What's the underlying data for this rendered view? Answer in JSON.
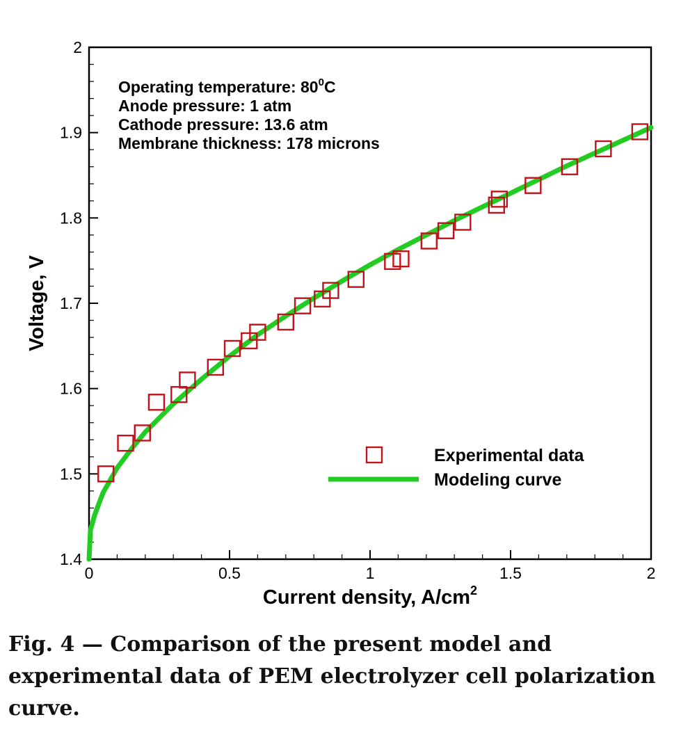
{
  "chart_data": {
    "type": "scatter",
    "xlabel": "Current density, A/cm",
    "xlabel_sup": "2",
    "ylabel": "Voltage, V",
    "xlim": [
      0,
      2
    ],
    "ylim": [
      1.4,
      2
    ],
    "x_ticks": [
      0,
      0.5,
      1,
      1.5,
      2
    ],
    "x_tick_labels": [
      "0",
      "0.5",
      "1",
      "1.5",
      "2"
    ],
    "y_ticks": [
      1.4,
      1.5,
      1.6,
      1.7,
      1.8,
      1.9,
      2
    ],
    "y_tick_labels": [
      "1.4",
      "1.5",
      "1.6",
      "1.7",
      "1.8",
      "1.9",
      "2"
    ],
    "grid": false,
    "legend_position": "lower-right",
    "annotations": [
      {
        "text": "Operating temperature: 80",
        "sup": "0",
        "suffix": "C"
      },
      {
        "text": "Anode pressure: 1 atm"
      },
      {
        "text": "Cathode pressure: 13.6 atm"
      },
      {
        "text": "Membrane thickness: 178 microns"
      }
    ],
    "series": [
      {
        "name": "Experimental data",
        "kind": "markers",
        "marker": "open-square",
        "color": "#c0141c",
        "x": [
          0.06,
          0.13,
          0.19,
          0.24,
          0.32,
          0.35,
          0.45,
          0.51,
          0.57,
          0.6,
          0.7,
          0.76,
          0.83,
          0.86,
          0.95,
          1.08,
          1.11,
          1.21,
          1.27,
          1.33,
          1.45,
          1.46,
          1.58,
          1.71,
          1.83,
          1.96
        ],
        "y": [
          1.5,
          1.536,
          1.548,
          1.584,
          1.593,
          1.61,
          1.625,
          1.647,
          1.656,
          1.666,
          1.678,
          1.697,
          1.705,
          1.715,
          1.728,
          1.749,
          1.752,
          1.773,
          1.785,
          1.795,
          1.815,
          1.822,
          1.838,
          1.86,
          1.881,
          1.901
        ]
      },
      {
        "name": "Modeling curve",
        "kind": "line",
        "color": "#22cc22",
        "x": [
          0,
          0.005,
          0.02,
          0.05,
          0.1,
          0.15,
          0.2,
          0.3,
          0.4,
          0.5,
          0.6,
          0.7,
          0.8,
          0.9,
          1.0,
          1.1,
          1.2,
          1.3,
          1.4,
          1.5,
          1.6,
          1.7,
          1.8,
          1.9,
          2.0
        ],
        "y": [
          1.4,
          1.434,
          1.452,
          1.478,
          1.507,
          1.529,
          1.549,
          1.582,
          1.611,
          1.638,
          1.663,
          1.685,
          1.706,
          1.726,
          1.745,
          1.763,
          1.78,
          1.797,
          1.813,
          1.829,
          1.845,
          1.861,
          1.876,
          1.891,
          1.906
        ]
      }
    ]
  },
  "caption": "Fig. 4 — Comparison of the present model and experimental data of PEM electrolyzer cell polarization curve."
}
